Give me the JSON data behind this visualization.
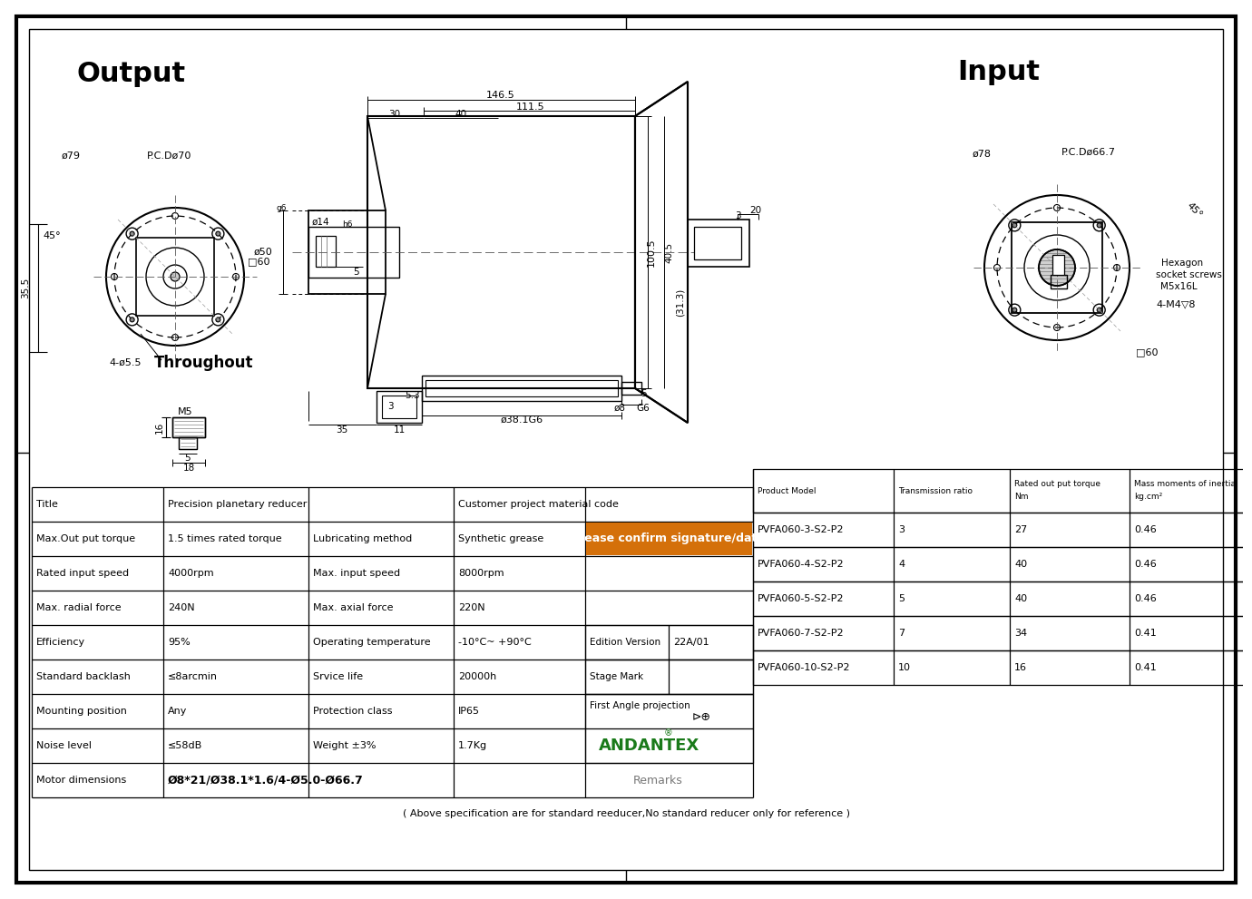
{
  "bg_color": "#ffffff",
  "black": "#000000",
  "orange": "#D4700A",
  "green": "#1a7a1a",
  "output_title": "Output",
  "input_title": "Input",
  "throughout_text": "Throughout",
  "footer": "( Above specification are for standard reeducer,No standard reducer only for reference )",
  "andantex": "ANDANTEX",
  "edition": "22A/01",
  "first_angle": "First Angle projection",
  "orange_text": "Please confirm signature/date",
  "product_headers": [
    "Product Model",
    "Transmission ratio",
    "Rated out put torque\nNm",
    "Mass moments of inertia\nkg.cm²"
  ],
  "product_rows": [
    [
      "PVFA060-3-S2-P2",
      "3",
      "27",
      "0.46"
    ],
    [
      "PVFA060-4-S2-P2",
      "4",
      "40",
      "0.46"
    ],
    [
      "PVFA060-5-S2-P2",
      "5",
      "40",
      "0.46"
    ],
    [
      "PVFA060-7-S2-P2",
      "7",
      "34",
      "0.41"
    ],
    [
      "PVFA060-10-S2-P2",
      "10",
      "16",
      "0.41"
    ]
  ],
  "spec_rows": [
    [
      "Title",
      "Precision planetary reducer",
      "",
      "Customer project material code",
      ""
    ],
    [
      "Max.Out put torque",
      "1.5 times rated torque",
      "Lubricating method",
      "Synthetic grease",
      ""
    ],
    [
      "Rated input speed",
      "4000rpm",
      "Max. input speed",
      "8000rpm",
      ""
    ],
    [
      "Max. radial force",
      "240N",
      "Max. axial force",
      "220N",
      ""
    ],
    [
      "Efficiency",
      "95%",
      "Operating temperature",
      "-10°C~ +90°C",
      ""
    ],
    [
      "Standard backlash",
      "≤8arcmin",
      "Srvice life",
      "20000h",
      ""
    ],
    [
      "Mounting position",
      "Any",
      "Protection class",
      "IP65",
      ""
    ],
    [
      "Noise level",
      "≤58dB",
      "Weight ±3%",
      "1.7Kg",
      ""
    ],
    [
      "Motor dimensions",
      "Ø8*21/Ø38.1*1.6/4-Ø5.0-Ø66.7",
      "",
      "",
      ""
    ]
  ]
}
